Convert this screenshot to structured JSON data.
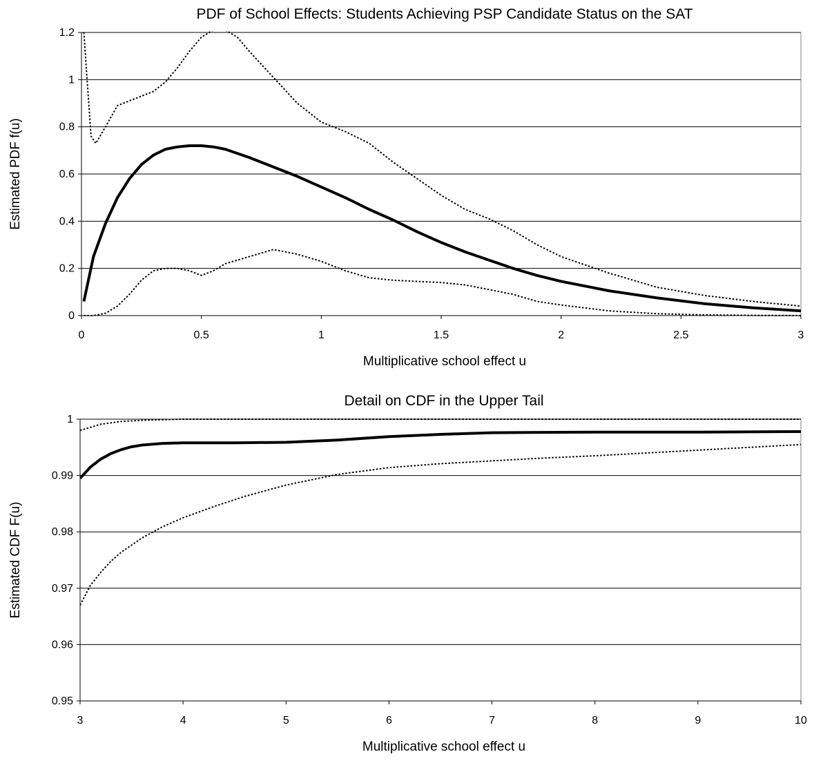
{
  "chart_data": [
    {
      "type": "line",
      "title": "PDF of School Effects: Students Achieving PSP Candidate Status on the SAT",
      "xlabel": "Multiplicative school effect u",
      "ylabel": "Estimated PDF f(u)",
      "xlim": [
        0,
        3
      ],
      "ylim": [
        0,
        1.2
      ],
      "xticks": [
        0,
        0.5,
        1,
        1.5,
        2,
        2.5,
        3
      ],
      "yticks": [
        0,
        0.2,
        0.4,
        0.6,
        0.8,
        1,
        1.2
      ],
      "grid": "horizontal",
      "legend": "none",
      "series": [
        {
          "style": "solid-thick",
          "x": [
            0.01,
            0.05,
            0.1,
            0.15,
            0.2,
            0.25,
            0.3,
            0.35,
            0.4,
            0.45,
            0.5,
            0.55,
            0.6,
            0.7,
            0.8,
            0.9,
            1.0,
            1.1,
            1.2,
            1.3,
            1.4,
            1.5,
            1.6,
            1.7,
            1.8,
            1.9,
            2.0,
            2.2,
            2.4,
            2.6,
            2.8,
            3.0
          ],
          "y": [
            0.06,
            0.25,
            0.39,
            0.5,
            0.58,
            0.64,
            0.68,
            0.705,
            0.715,
            0.72,
            0.72,
            0.715,
            0.705,
            0.67,
            0.63,
            0.59,
            0.545,
            0.5,
            0.45,
            0.405,
            0.355,
            0.31,
            0.27,
            0.235,
            0.2,
            0.17,
            0.145,
            0.105,
            0.075,
            0.05,
            0.033,
            0.02
          ]
        },
        {
          "style": "dotted",
          "x": [
            0.01,
            0.02,
            0.04,
            0.06,
            0.1,
            0.15,
            0.2,
            0.25,
            0.3,
            0.35,
            0.4,
            0.45,
            0.5,
            0.55,
            0.6,
            0.65,
            0.7,
            0.8,
            0.9,
            1.0,
            1.1,
            1.2,
            1.3,
            1.4,
            1.5,
            1.6,
            1.7,
            1.8,
            1.9,
            2.0,
            2.2,
            2.4,
            2.6,
            2.8,
            3.0
          ],
          "y": [
            1.2,
            1.05,
            0.76,
            0.73,
            0.8,
            0.89,
            0.91,
            0.93,
            0.95,
            0.99,
            1.05,
            1.12,
            1.18,
            1.21,
            1.21,
            1.18,
            1.12,
            1.01,
            0.9,
            0.82,
            0.78,
            0.73,
            0.65,
            0.58,
            0.51,
            0.45,
            0.41,
            0.36,
            0.3,
            0.25,
            0.18,
            0.12,
            0.085,
            0.06,
            0.04
          ]
        },
        {
          "style": "dotted",
          "x": [
            0.01,
            0.05,
            0.1,
            0.15,
            0.2,
            0.25,
            0.3,
            0.35,
            0.4,
            0.45,
            0.5,
            0.55,
            0.6,
            0.7,
            0.8,
            0.9,
            1.0,
            1.1,
            1.2,
            1.3,
            1.4,
            1.5,
            1.6,
            1.7,
            1.8,
            1.9,
            2.0,
            2.2,
            2.4,
            2.6,
            2.8,
            3.0
          ],
          "y": [
            0.0,
            0.0,
            0.01,
            0.04,
            0.09,
            0.15,
            0.19,
            0.2,
            0.2,
            0.19,
            0.17,
            0.19,
            0.22,
            0.25,
            0.28,
            0.26,
            0.23,
            0.19,
            0.16,
            0.15,
            0.145,
            0.14,
            0.13,
            0.11,
            0.09,
            0.06,
            0.045,
            0.02,
            0.008,
            0.003,
            0.001,
            0.0
          ]
        }
      ]
    },
    {
      "type": "line",
      "title": "Detail on CDF in the Upper Tail",
      "xlabel": "Multiplicative school effect u",
      "ylabel": "Estimated CDF F(u)",
      "xlim": [
        3,
        10
      ],
      "ylim": [
        0.95,
        1
      ],
      "xticks": [
        3,
        4,
        5,
        6,
        7,
        8,
        9,
        10
      ],
      "yticks": [
        0.95,
        0.96,
        0.97,
        0.98,
        0.99,
        1
      ],
      "grid": "horizontal",
      "legend": "none",
      "series": [
        {
          "style": "solid-thick",
          "x": [
            3.0,
            3.1,
            3.2,
            3.3,
            3.4,
            3.5,
            3.6,
            3.8,
            4.0,
            4.5,
            5.0,
            5.5,
            6.0,
            6.5,
            7.0,
            8.0,
            9.0,
            10.0
          ],
          "y": [
            0.9895,
            0.9915,
            0.9929,
            0.9939,
            0.9946,
            0.9951,
            0.9954,
            0.9957,
            0.9958,
            0.9958,
            0.9959,
            0.9963,
            0.9969,
            0.9973,
            0.9976,
            0.9977,
            0.9977,
            0.9978
          ]
        },
        {
          "style": "dotted",
          "x": [
            3.0,
            3.2,
            3.4,
            3.6,
            3.8,
            4.0,
            4.5,
            5.0,
            6.0,
            7.0,
            8.0,
            9.0,
            10.0
          ],
          "y": [
            0.998,
            0.9991,
            0.9996,
            0.9998,
            0.9999,
            1.0,
            1.0,
            1.0,
            1.0,
            1.0,
            1.0,
            1.0,
            1.0
          ]
        },
        {
          "style": "dotted",
          "x": [
            3.0,
            3.1,
            3.2,
            3.3,
            3.4,
            3.6,
            3.8,
            4.0,
            4.3,
            4.6,
            5.0,
            5.5,
            6.0,
            6.5,
            7.0,
            7.5,
            8.0,
            8.5,
            9.0,
            9.5,
            10.0
          ],
          "y": [
            0.967,
            0.9705,
            0.9728,
            0.9748,
            0.9764,
            0.9789,
            0.9809,
            0.9825,
            0.9845,
            0.9863,
            0.9883,
            0.9902,
            0.9914,
            0.9921,
            0.9926,
            0.9931,
            0.9935,
            0.994,
            0.9945,
            0.995,
            0.9955
          ]
        }
      ]
    }
  ]
}
